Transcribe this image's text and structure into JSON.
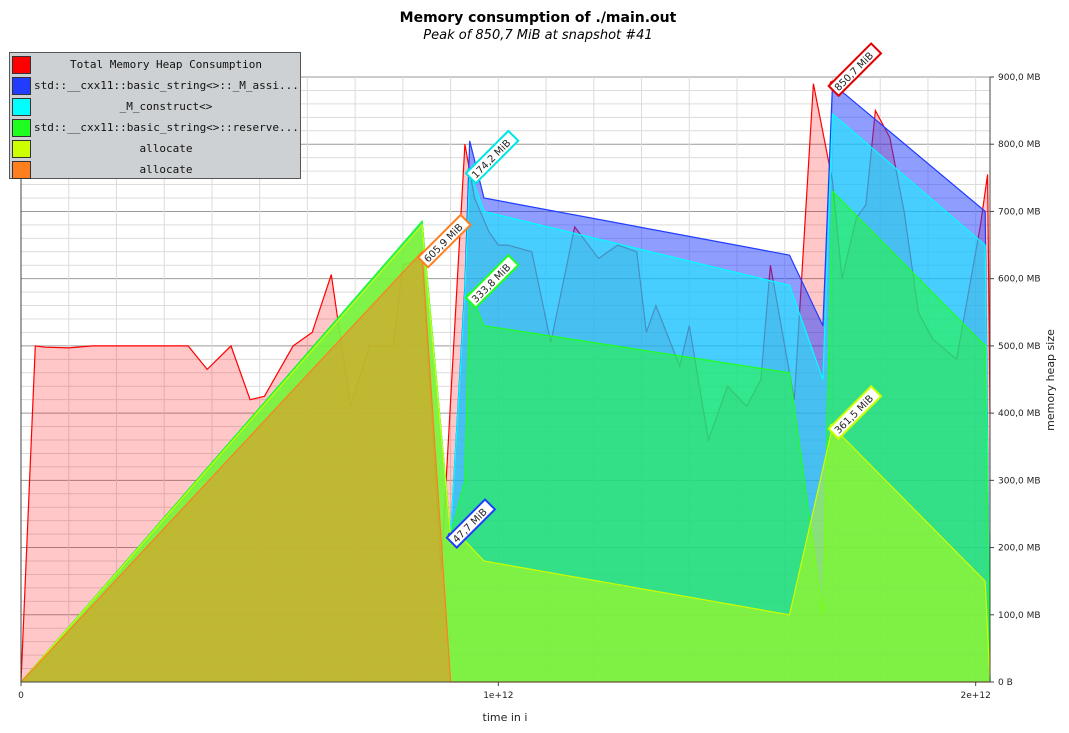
{
  "chart_data": {
    "type": "area",
    "title": "Memory consumption of ./main.out",
    "subtitle": "Peak of 850,7 MiB at snapshot #41",
    "xlabel": "time in i",
    "ylabel": "memory heap size",
    "xlim": [
      0,
      2030000000000.0
    ],
    "ylim": [
      0,
      900
    ],
    "x_ticks": [
      {
        "value": 0,
        "label": "0"
      },
      {
        "value": 1000000000000.0,
        "label": "1e+12"
      },
      {
        "value": 2000000000000.0,
        "label": "2e+12"
      }
    ],
    "y_ticks": [
      {
        "value": 0,
        "label": "0 B"
      },
      {
        "value": 100,
        "label": "100,0 MB"
      },
      {
        "value": 200,
        "label": "200,0 MB"
      },
      {
        "value": 300,
        "label": "300,0 MB"
      },
      {
        "value": 400,
        "label": "400,0 MB"
      },
      {
        "value": 500,
        "label": "500,0 MB"
      },
      {
        "value": 600,
        "label": "600,0 MB"
      },
      {
        "value": 700,
        "label": "700,0 MB"
      },
      {
        "value": 800,
        "label": "800,0 MB"
      },
      {
        "value": 900,
        "label": "900,0 MB"
      }
    ],
    "grid": true,
    "legend_position": "top-left",
    "series": [
      {
        "name": "Total Memory Heap Consumption",
        "color": "#ff0000",
        "x": [
          0,
          30000000000.0,
          50000000000.0,
          100000000000.0,
          150000000000.0,
          200000000000.0,
          250000000000.0,
          300000000000.0,
          350000000000.0,
          390000000000.0,
          440000000000.0,
          480000000000.0,
          510000000000.0,
          570000000000.0,
          610000000000.0,
          650000000000.0,
          690000000000.0,
          730000000000.0,
          780000000000.0,
          800000000000.0,
          840000000000.0,
          880000000000.0,
          930000000000.0,
          950000000000.0,
          980000000000.0,
          1000000000000.0,
          1020000000000.0,
          1070000000000.0,
          1110000000000.0,
          1160000000000.0,
          1210000000000.0,
          1250000000000.0,
          1290000000000.0,
          1310000000000.0,
          1330000000000.0,
          1380000000000.0,
          1400000000000.0,
          1440000000000.0,
          1480000000000.0,
          1520000000000.0,
          1550000000000.0,
          1570000000000.0,
          1620000000000.0,
          1660000000000.0,
          1700000000000.0,
          1720000000000.0,
          1750000000000.0,
          1770000000000.0,
          1790000000000.0,
          1820000000000.0,
          1850000000000.0,
          1880000000000.0,
          1910000000000.0,
          1960000000000.0,
          2010000000000.0,
          2025000000000.0,
          2030000000000.0
        ],
        "values": [
          0,
          500,
          498,
          497,
          500,
          500,
          500,
          500,
          500,
          465,
          500,
          420,
          425,
          500,
          520,
          606,
          410,
          500,
          500,
          620,
          630,
          165,
          800,
          720,
          670,
          650,
          650,
          640,
          505,
          677,
          630,
          650,
          640,
          520,
          560,
          470,
          530,
          360,
          440,
          410,
          450,
          620,
          420,
          890,
          745,
          600,
          690,
          710,
          850,
          810,
          700,
          550,
          510,
          480,
          680,
          755,
          400
        ]
      },
      {
        "name": "std::__cxx11::basic_string<>::_M_assi...",
        "color": "#1f3cff",
        "x": [
          0,
          840000000000.0,
          900000000000.0,
          930000000000.0,
          940000000000.0,
          970000000000.0,
          1610000000000.0,
          1680000000000.0,
          1700000000000.0,
          2020000000000.0,
          2030000000000.0
        ],
        "values": [
          0,
          685,
          218,
          590,
          805,
          720,
          635,
          530,
          890,
          700,
          0
        ]
      },
      {
        "name": "_M_construct<>",
        "color": "#00ffff",
        "x": [
          0,
          840000000000.0,
          900000000000.0,
          930000000000.0,
          940000000000.0,
          970000000000.0,
          1610000000000.0,
          1680000000000.0,
          1700000000000.0,
          2020000000000.0,
          2030000000000.0
        ],
        "values": [
          0,
          685,
          218,
          580,
          760,
          700,
          590,
          450,
          845,
          650,
          0
        ]
      },
      {
        "name": "std::__cxx11::basic_string<>::reserve...",
        "color": "#1fff1f",
        "x": [
          0,
          840000000000.0,
          900000000000.0,
          930000000000.0,
          940000000000.0,
          970000000000.0,
          1610000000000.0,
          1680000000000.0,
          1700000000000.0,
          2020000000000.0,
          2030000000000.0
        ],
        "values": [
          0,
          685,
          218,
          300,
          580,
          530,
          460,
          100,
          730,
          500,
          0
        ]
      },
      {
        "name": "allocate",
        "color": "#ccff00",
        "x": [
          0,
          840000000000.0,
          900000000000.0,
          930000000000.0,
          970000000000.0,
          1610000000000.0,
          1700000000000.0,
          2020000000000.0,
          2030000000000.0
        ],
        "values": [
          0,
          680,
          218,
          210,
          180,
          100,
          380,
          150,
          0
        ]
      },
      {
        "name": "allocate",
        "color": "#ff7f1f",
        "x": [
          0,
          840000000000.0,
          900000000000.0,
          2030000000000.0
        ],
        "values": [
          0,
          640,
          0,
          0
        ]
      }
    ],
    "annotations": [
      {
        "label": "850,7 MiB",
        "x": 1700000000000.0,
        "y": 890,
        "color": "#e00000"
      },
      {
        "label": "174,2 MiB",
        "x": 940000000000.0,
        "y": 760,
        "color": "#00e5e5"
      },
      {
        "label": "605,9 MiB",
        "x": 840000000000.0,
        "y": 635,
        "color": "#ff7f1f"
      },
      {
        "label": "333,8 MiB",
        "x": 940000000000.0,
        "y": 575,
        "color": "#1fff1f"
      },
      {
        "label": "361,5 MiB",
        "x": 1700000000000.0,
        "y": 380,
        "color": "#ccff00"
      },
      {
        "label": "47,7 MiB",
        "x": 900000000000.0,
        "y": 218,
        "color": "#1f3cff"
      }
    ]
  }
}
